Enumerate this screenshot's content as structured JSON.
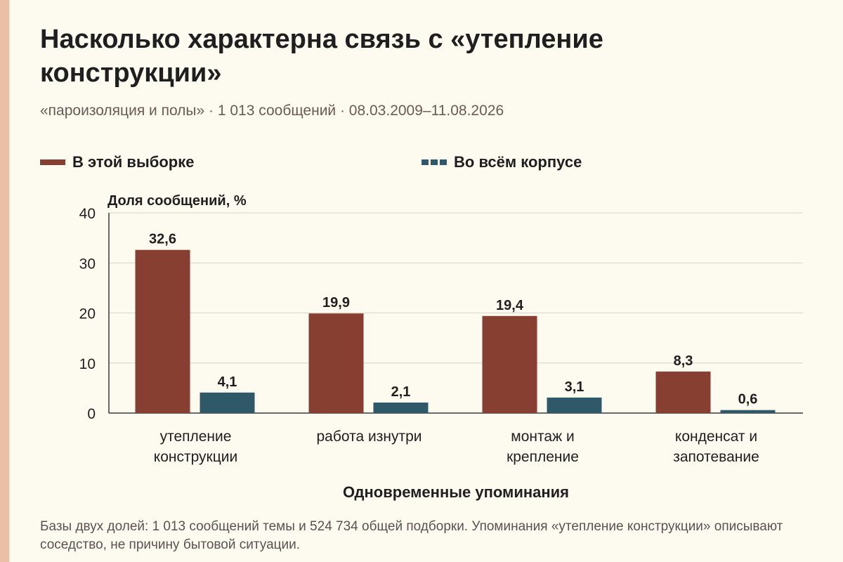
{
  "header": {
    "title": "Насколько характерна связь с «утепление конструкции»",
    "subtitle": "«пароизоляция и полы» · 1 013 сообщений · 08.03.2009–11.08.2026"
  },
  "footnote": "Базы двух долей: 1 013 сообщений темы и 524 734 общей подборки. Упоминания «утепление конструкции» описывают соседство, не причину бытовой ситуации.",
  "colors": {
    "sample": "#873f31",
    "corpus": "#2f5968",
    "accent_strip": "#ebbfa6",
    "background": "#fdfaf0"
  },
  "chart_data": {
    "type": "bar",
    "ylabel": "Доля сообщений, %",
    "xlabel": "Одновременные упоминания",
    "ylim": [
      0,
      40
    ],
    "yticks": [
      0,
      10,
      20,
      30,
      40
    ],
    "grid": true,
    "legend_position": "top",
    "categories": [
      [
        "утепление",
        "конструкции"
      ],
      [
        "работа изнутри"
      ],
      [
        "монтаж и",
        "крепление"
      ],
      [
        "конденсат и",
        "запотевание"
      ]
    ],
    "series": [
      {
        "name": "В этой выборке",
        "values": [
          32.6,
          19.9,
          19.4,
          8.3
        ],
        "labels": [
          "32,6",
          "19,9",
          "19,4",
          "8,3"
        ],
        "color": "#873f31"
      },
      {
        "name": "Во всём корпусе",
        "values": [
          4.1,
          2.1,
          3.1,
          0.6
        ],
        "labels": [
          "4,1",
          "2,1",
          "3,1",
          "0,6"
        ],
        "color": "#2f5968"
      }
    ]
  }
}
